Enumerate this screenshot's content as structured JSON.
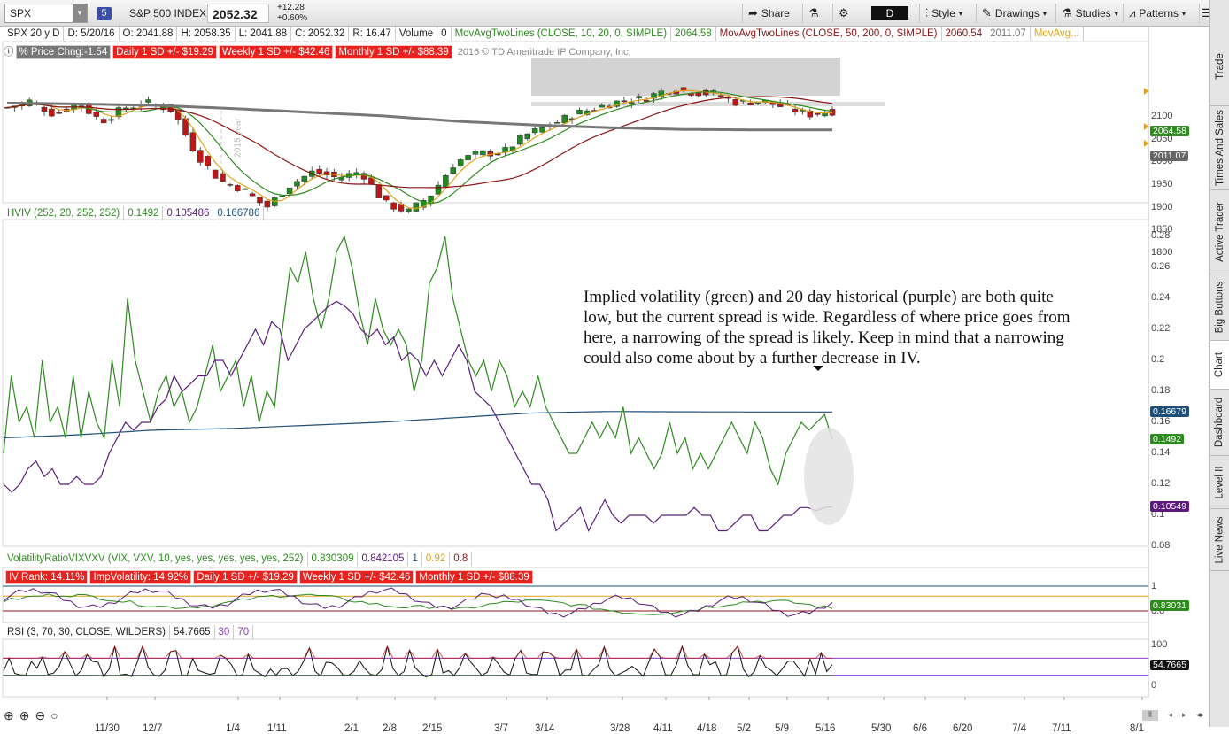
{
  "toolbar": {
    "symbol": "SPX",
    "badge": "5",
    "name": "S&P 500 INDEX",
    "price": "2052.32",
    "change": "+12.28",
    "change_pct": "+0.60%",
    "share": "Share",
    "style": "Style",
    "drawings": "Drawings",
    "studies": "Studies",
    "patterns": "Patterns",
    "period": "D"
  },
  "side_tabs": [
    "Trade",
    "Times And Sales",
    "Active Trader",
    "Big Buttons",
    "Chart",
    "Dashboard",
    "Level II",
    "Live News"
  ],
  "price_info": {
    "spec": "SPX 20 y D",
    "date": "D: 5/20/16",
    "open": "O: 2041.88",
    "high": "H: 2058.35",
    "low": "L: 2041.88",
    "close": "C: 2052.32",
    "range": "R: 16.47",
    "volume_label": "Volume",
    "volume": "0",
    "ma1": "MovAvgTwoLines (CLOSE, 10, 20, 0, SIMPLE)",
    "ma1_val": "2064.58",
    "ma2": "MovAvgTwoLines (CLOSE, 50, 200, 0, SIMPLE)",
    "ma2_val1": "2060.54",
    "ma2_val2": "2011.07",
    "ma3": "MovAvg..."
  },
  "price_badges": {
    "pct": "% Price Chng:-1.54",
    "daily": "Daily 1 SD +/- $19.29",
    "weekly": "Weekly 1 SD +/- $42.46",
    "monthly": "Monthly 1 SD +/- $88.39",
    "copyright": "2016 © TD Ameritrade IP Company, Inc.",
    "year": "2015 year"
  },
  "price_axis": [
    "2100",
    "2050",
    "2000",
    "1950",
    "1900",
    "1850",
    "1800"
  ],
  "price_tags": {
    "ma": "2064.58",
    "ma200": "2011.07"
  },
  "hviv_info": {
    "label": "HVIV (252, 20, 252, 252)",
    "v1": "0.1492",
    "v2": "0.105486",
    "v3": "0.166786"
  },
  "hviv_axis": [
    "0.28",
    "0.26",
    "0.24",
    "0.22",
    "0.2",
    "0.18",
    "0.16",
    "0.14",
    "0.12",
    "0.1",
    "0.08"
  ],
  "hviv_tags": {
    "blue": "0.16679",
    "green": "0.1492",
    "purple": "0.10549"
  },
  "note": "Implied volatility (green) and 20 day historical (purple) are both quite low, but the current spread is wide.  Regardless of where price goes from here, a narrowing of the spread is likely.  Keep in mind that a narrowing could also come about by a further decrease in IV.",
  "vr_info": {
    "label": "VolatilityRatioVIXVXV (VIX, VXV, 10, yes, yes, yes, yes, yes, 252)",
    "v1": "0.830309",
    "v2": "0.842105",
    "v3": "1",
    "v4": "0.92",
    "v5": "0.8"
  },
  "vr_badges": {
    "rank": "IV Rank: 14.11%",
    "imp": "ImpVolatility: 14.92%",
    "daily": "Daily 1 SD +/- $19.29",
    "weekly": "Weekly 1 SD +/- $42.46",
    "monthly": "Monthly 1 SD +/- $88.39"
  },
  "vr_axis": [
    "1",
    "0.8"
  ],
  "vr_tag": "0.83031",
  "rsi_info": {
    "label": "RSI (3, 70, 30, CLOSE, WILDERS)",
    "v1": "54.7665",
    "v2": "30",
    "v3": "70"
  },
  "rsi_axis": [
    "100",
    "50",
    "0"
  ],
  "rsi_tag": "54.7665",
  "x_labels": [
    "11/30",
    "12/7",
    "1/4",
    "1/11",
    "2/1",
    "2/8",
    "2/15",
    "3/7",
    "3/14",
    "3/28",
    "4/11",
    "4/18",
    "5/2",
    "5/9",
    "5/16",
    "5/30",
    "6/6",
    "6/20",
    "7/4",
    "7/11",
    "8/1"
  ],
  "colors": {
    "green": "#2d8a1e",
    "purple": "#5b1a7a",
    "blue": "#1d4f7a",
    "red": "#8e1414",
    "orange": "#e0a21b",
    "grey": "#777777"
  }
}
